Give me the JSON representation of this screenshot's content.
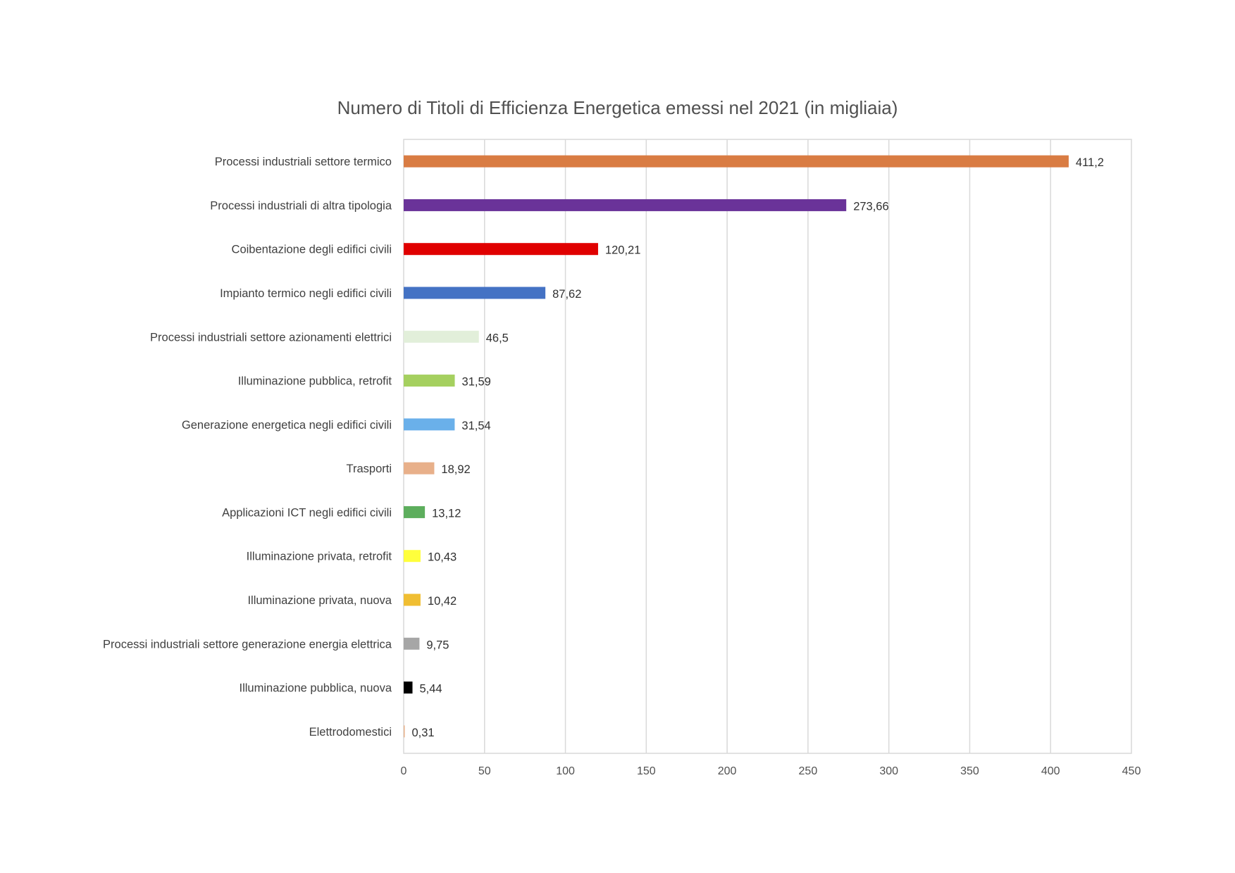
{
  "chart_data": {
    "type": "bar",
    "orientation": "horizontal",
    "title": "Numero di Titoli di Efficienza Energetica emessi nel 2021 (in migliaia)",
    "xlabel": "",
    "ylabel": "",
    "xlim": [
      0,
      450
    ],
    "x_ticks": [
      0,
      50,
      100,
      150,
      200,
      250,
      300,
      350,
      400,
      450
    ],
    "grid": "vertical",
    "legend": "none",
    "categories": [
      "Processi industriali settore termico",
      "Processi industriali di altra tipologia",
      "Coibentazione degli edifici civili",
      "Impianto termico negli edifici civili",
      "Processi industriali settore azionamenti elettrici",
      "Illuminazione pubblica, retrofit",
      "Generazione energetica negli edifici civili",
      "Trasporti",
      "Applicazioni ICT negli edifici civili",
      "Illuminazione privata, retrofit",
      "Illuminazione privata, nuova",
      "Processi industriali settore generazione energia elettrica",
      "Illuminazione pubblica, nuova",
      "Elettrodomestici"
    ],
    "values": [
      411.2,
      273.66,
      120.21,
      87.62,
      46.5,
      31.59,
      31.54,
      18.92,
      13.12,
      10.43,
      10.42,
      9.75,
      5.44,
      0.31
    ],
    "value_labels": [
      "411,2",
      "273,66",
      "120,21",
      "87,62",
      "46,5",
      "31,59",
      "31,54",
      "18,92",
      "13,12",
      "10,43",
      "10,42",
      "9,75",
      "5,44",
      "0,31"
    ],
    "colors": [
      "#D97C43",
      "#6A3399",
      "#E00000",
      "#4472C4",
      "#E2EFDA",
      "#A5D05F",
      "#6AB0EA",
      "#E8B08A",
      "#5DAE5D",
      "#FFFF3C",
      "#F0BE32",
      "#A6A6A6",
      "#000000",
      "#E8B08A"
    ]
  }
}
